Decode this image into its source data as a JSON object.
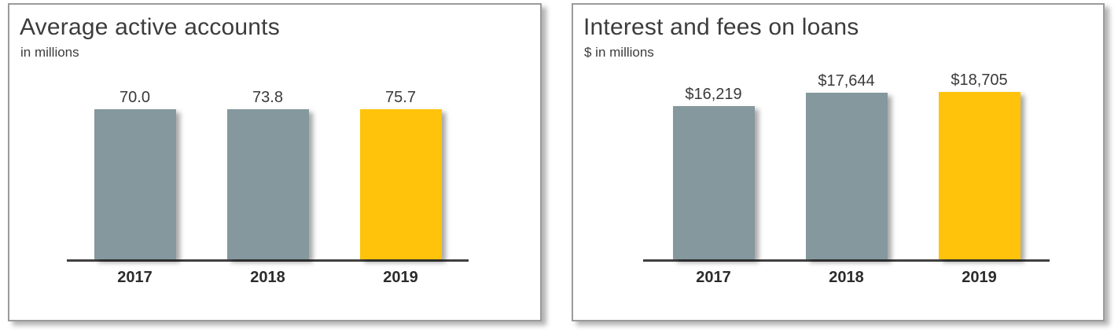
{
  "page": {
    "background": "#ffffff",
    "panel_border_color": "#9b9b9b"
  },
  "colors": {
    "bar_gray": "#84989e",
    "bar_gold": "#ffc30b",
    "axis": "#404040",
    "text": "#3c3c3c"
  },
  "chart_data": [
    {
      "type": "bar",
      "title": "Average active accounts",
      "subtitle": "in millions",
      "categories": [
        "2017",
        "2018",
        "2019"
      ],
      "values": [
        70.0,
        73.8,
        75.7
      ],
      "value_labels": [
        "70.0",
        "73.8",
        "75.7"
      ],
      "bar_colors": [
        "#84989e",
        "#84989e",
        "#ffc30b"
      ],
      "xlabel": "",
      "ylabel": "",
      "ylim": [
        0,
        80
      ],
      "grid": false,
      "legend": "none",
      "baseline": 0
    },
    {
      "type": "bar",
      "title": "Interest and fees on loans",
      "subtitle": "$ in millions",
      "categories": [
        "2017",
        "2018",
        "2019"
      ],
      "values": [
        16219,
        17644,
        18705
      ],
      "value_labels": [
        "$16,219",
        "$17,644",
        "$18,705"
      ],
      "bar_colors": [
        "#84989e",
        "#84989e",
        "#ffc30b"
      ],
      "xlabel": "",
      "ylabel": "",
      "ylim": [
        0,
        20000
      ],
      "grid": false,
      "legend": "none",
      "baseline": 0
    }
  ]
}
